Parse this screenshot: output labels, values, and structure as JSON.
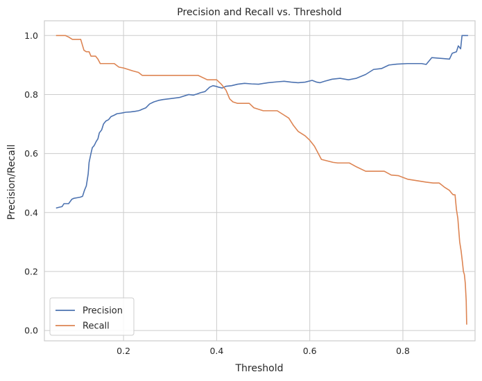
{
  "chart_data": {
    "type": "line",
    "title": "Precision and Recall vs. Threshold",
    "xlabel": "Threshold",
    "ylabel": "Precision/Recall",
    "xlim": [
      0.03,
      0.955
    ],
    "ylim": [
      -0.035,
      1.05
    ],
    "xticks": [
      0.2,
      0.4,
      0.6,
      0.8
    ],
    "yticks": [
      0.0,
      0.2,
      0.4,
      0.6,
      0.8,
      1.0
    ],
    "xtick_labels": [
      "0.2",
      "0.4",
      "0.6",
      "0.8"
    ],
    "ytick_labels": [
      "0.0",
      "0.2",
      "0.4",
      "0.6",
      "0.8",
      "1.0"
    ],
    "grid": true,
    "legend_position": "bottom-left",
    "series": [
      {
        "name": "Precision",
        "color": "#4c72b0",
        "x": [
          0.055,
          0.062,
          0.068,
          0.072,
          0.077,
          0.082,
          0.089,
          0.093,
          0.1,
          0.107,
          0.112,
          0.116,
          0.12,
          0.124,
          0.126,
          0.13,
          0.133,
          0.136,
          0.138,
          0.141,
          0.145,
          0.148,
          0.153,
          0.157,
          0.162,
          0.168,
          0.173,
          0.18,
          0.186,
          0.195,
          0.205,
          0.215,
          0.225,
          0.232,
          0.236,
          0.24,
          0.248,
          0.256,
          0.265,
          0.275,
          0.285,
          0.3,
          0.32,
          0.34,
          0.35,
          0.358,
          0.365,
          0.375,
          0.385,
          0.392,
          0.398,
          0.404,
          0.412,
          0.42,
          0.432,
          0.445,
          0.46,
          0.475,
          0.49,
          0.51,
          0.53,
          0.545,
          0.56,
          0.575,
          0.59,
          0.605,
          0.615,
          0.622,
          0.632,
          0.648,
          0.665,
          0.683,
          0.7,
          0.72,
          0.737,
          0.754,
          0.77,
          0.787,
          0.81,
          0.84,
          0.85,
          0.862,
          0.878,
          0.9,
          0.906,
          0.915,
          0.919,
          0.924,
          0.927,
          0.932,
          0.94
        ],
        "values": [
          0.415,
          0.418,
          0.42,
          0.43,
          0.43,
          0.43,
          0.445,
          0.448,
          0.45,
          0.452,
          0.455,
          0.475,
          0.49,
          0.53,
          0.57,
          0.6,
          0.62,
          0.625,
          0.63,
          0.64,
          0.65,
          0.67,
          0.68,
          0.7,
          0.71,
          0.715,
          0.725,
          0.73,
          0.735,
          0.737,
          0.74,
          0.741,
          0.743,
          0.745,
          0.747,
          0.75,
          0.755,
          0.768,
          0.775,
          0.78,
          0.783,
          0.786,
          0.79,
          0.8,
          0.798,
          0.802,
          0.806,
          0.81,
          0.825,
          0.83,
          0.828,
          0.825,
          0.822,
          0.828,
          0.83,
          0.835,
          0.838,
          0.836,
          0.835,
          0.84,
          0.843,
          0.845,
          0.842,
          0.84,
          0.842,
          0.848,
          0.842,
          0.84,
          0.845,
          0.852,
          0.855,
          0.85,
          0.855,
          0.868,
          0.885,
          0.888,
          0.9,
          0.903,
          0.905,
          0.905,
          0.902,
          0.925,
          0.923,
          0.92,
          0.94,
          0.945,
          0.965,
          0.955,
          1.0,
          1.0,
          1.0
        ]
      },
      {
        "name": "Recall",
        "color": "#dd8452",
        "x": [
          0.055,
          0.065,
          0.07,
          0.075,
          0.082,
          0.09,
          0.1,
          0.108,
          0.115,
          0.12,
          0.126,
          0.13,
          0.14,
          0.145,
          0.15,
          0.16,
          0.17,
          0.18,
          0.19,
          0.2,
          0.21,
          0.22,
          0.232,
          0.24,
          0.26,
          0.3,
          0.34,
          0.35,
          0.36,
          0.38,
          0.4,
          0.41,
          0.42,
          0.428,
          0.435,
          0.445,
          0.46,
          0.47,
          0.48,
          0.5,
          0.51,
          0.53,
          0.545,
          0.555,
          0.565,
          0.575,
          0.59,
          0.6,
          0.61,
          0.615,
          0.625,
          0.65,
          0.66,
          0.668,
          0.685,
          0.7,
          0.72,
          0.74,
          0.76,
          0.775,
          0.79,
          0.81,
          0.83,
          0.85,
          0.865,
          0.878,
          0.89,
          0.9,
          0.905,
          0.908,
          0.912,
          0.915,
          0.918,
          0.92,
          0.922,
          0.925,
          0.928,
          0.93,
          0.932,
          0.934,
          0.936,
          0.937
        ],
        "values": [
          1.0,
          1.0,
          1.0,
          1.0,
          0.995,
          0.987,
          0.987,
          0.987,
          0.95,
          0.945,
          0.945,
          0.93,
          0.93,
          0.92,
          0.905,
          0.905,
          0.905,
          0.905,
          0.893,
          0.89,
          0.885,
          0.88,
          0.875,
          0.865,
          0.865,
          0.865,
          0.865,
          0.865,
          0.865,
          0.85,
          0.85,
          0.835,
          0.815,
          0.785,
          0.775,
          0.77,
          0.77,
          0.77,
          0.755,
          0.745,
          0.745,
          0.745,
          0.73,
          0.72,
          0.695,
          0.675,
          0.66,
          0.645,
          0.625,
          0.61,
          0.58,
          0.57,
          0.568,
          0.568,
          0.568,
          0.555,
          0.54,
          0.54,
          0.54,
          0.527,
          0.525,
          0.513,
          0.508,
          0.503,
          0.5,
          0.5,
          0.485,
          0.475,
          0.465,
          0.46,
          0.46,
          0.41,
          0.38,
          0.34,
          0.3,
          0.27,
          0.23,
          0.2,
          0.19,
          0.16,
          0.1,
          0.02
        ]
      }
    ]
  }
}
